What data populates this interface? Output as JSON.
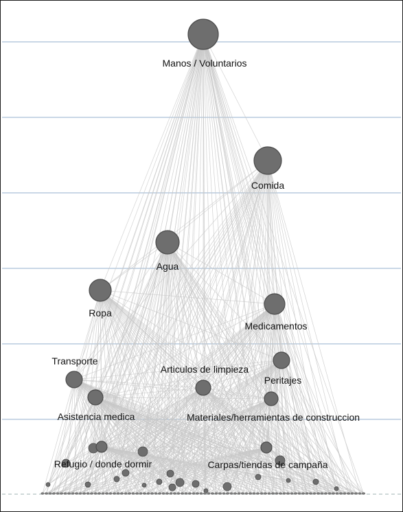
{
  "diagram": {
    "background": "#ffffff",
    "gridline_color": "#a9bfd6",
    "edge_color": "#c8c8c8",
    "node_fill": "#6e6e6e",
    "node_stroke": "#4a4a4a",
    "nodes": [
      {
        "id": "manos",
        "label": "Manos / Voluntarios"
      },
      {
        "id": "comida",
        "label": "Comida"
      },
      {
        "id": "agua",
        "label": "Agua"
      },
      {
        "id": "ropa",
        "label": "Ropa"
      },
      {
        "id": "medicamentos",
        "label": "Medicamentos"
      },
      {
        "id": "transporte",
        "label": "Transporte"
      },
      {
        "id": "limpieza",
        "label": "Articulos de limpieza"
      },
      {
        "id": "peritajes",
        "label": "Peritajes"
      },
      {
        "id": "asistencia",
        "label": "Asistencia medica"
      },
      {
        "id": "materiales",
        "label": "Materiales/herramientas de construccion"
      },
      {
        "id": "refugio",
        "label": "Refugio / donde dormir"
      },
      {
        "id": "carpas",
        "label": "Carpas/tiendas de campaña"
      }
    ]
  }
}
